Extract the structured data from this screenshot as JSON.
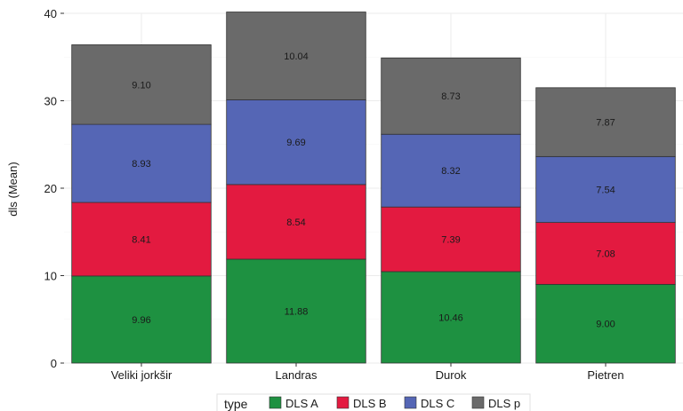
{
  "chart_data": {
    "type": "bar",
    "stacked": true,
    "title": "",
    "xlabel": "",
    "ylabel": "dls (Mean)",
    "ylim": [
      0,
      40
    ],
    "yticks": [
      0,
      10,
      20,
      30,
      40
    ],
    "grid": true,
    "legend_position": "bottom",
    "legend_title": "type",
    "categories": [
      "Veliki jorkšir",
      "Landras",
      "Durok",
      "Pietren"
    ],
    "series": [
      {
        "name": "DLS A",
        "color": "#1e9141",
        "values": [
          9.96,
          11.88,
          10.46,
          9.0
        ],
        "labels": [
          "9.96",
          "11.88",
          "10.46",
          "9.00"
        ]
      },
      {
        "name": "DLS B",
        "color": "#e31a40",
        "values": [
          8.41,
          8.54,
          7.39,
          7.08
        ],
        "labels": [
          "8.41",
          "8.54",
          "7.39",
          "7.08"
        ]
      },
      {
        "name": "DLS C",
        "color": "#5566b5",
        "values": [
          8.93,
          9.69,
          8.32,
          7.54
        ],
        "labels": [
          "8.93",
          "9.69",
          "8.32",
          "7.54"
        ]
      },
      {
        "name": "DLS p",
        "color": "#6a6a6a",
        "values": [
          9.1,
          10.04,
          8.73,
          7.87
        ],
        "labels": [
          "9.10",
          "10.04",
          "8.73",
          "7.87"
        ]
      }
    ]
  }
}
